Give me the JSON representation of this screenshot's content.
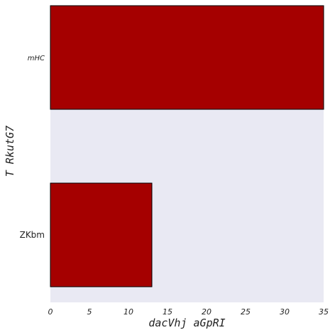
{
  "chart_data": {
    "type": "bar",
    "orientation": "horizontal",
    "categories": [
      "mHC",
      "ZKbm"
    ],
    "values": [
      35,
      13
    ],
    "xlabel": "dacVhj aGpRI",
    "ylabel": "T RkutG7",
    "xlim": [
      0,
      35
    ],
    "xticks": [
      0,
      5,
      10,
      15,
      20,
      25,
      30,
      35
    ],
    "grid": false,
    "legend": "none",
    "colors": {
      "bar": "#a50000",
      "bar_edge": "#000000",
      "plot_background": "#e9e9f3"
    }
  }
}
